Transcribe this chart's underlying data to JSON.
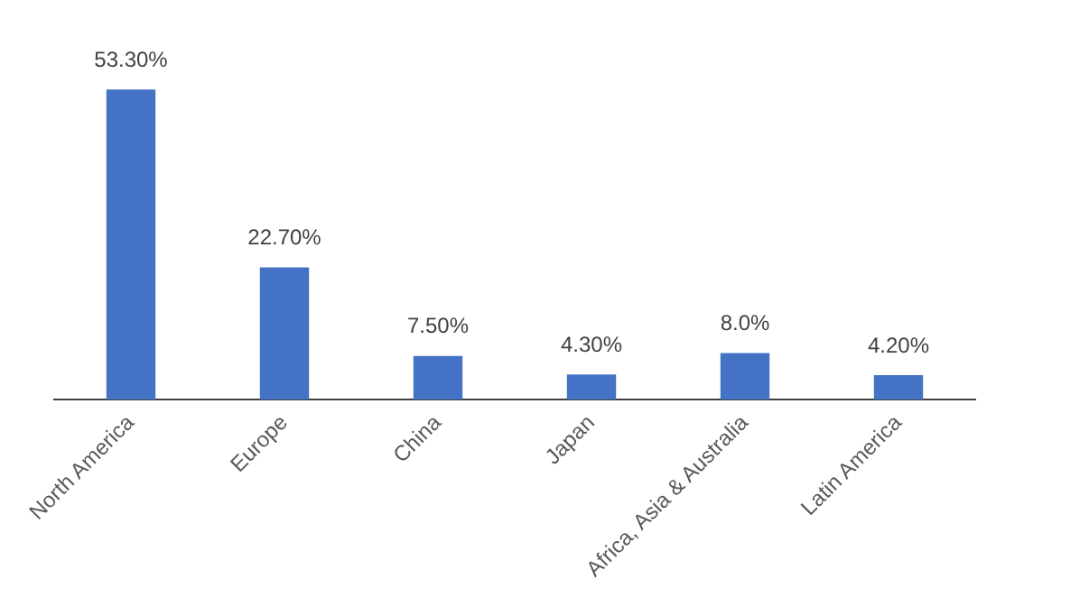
{
  "chart_data": {
    "type": "bar",
    "categories": [
      "North America",
      "Europe",
      "China",
      "Japan",
      "Africa, Asia & Australia",
      "Latin America"
    ],
    "values": [
      53.3,
      22.7,
      7.5,
      4.3,
      8.0,
      4.2
    ],
    "value_labels": [
      "53.30%",
      "22.70%",
      "7.50%",
      "4.30%",
      "8.0%",
      "4.20%"
    ],
    "color": "#4472c4",
    "tick_labels": "x"
  }
}
